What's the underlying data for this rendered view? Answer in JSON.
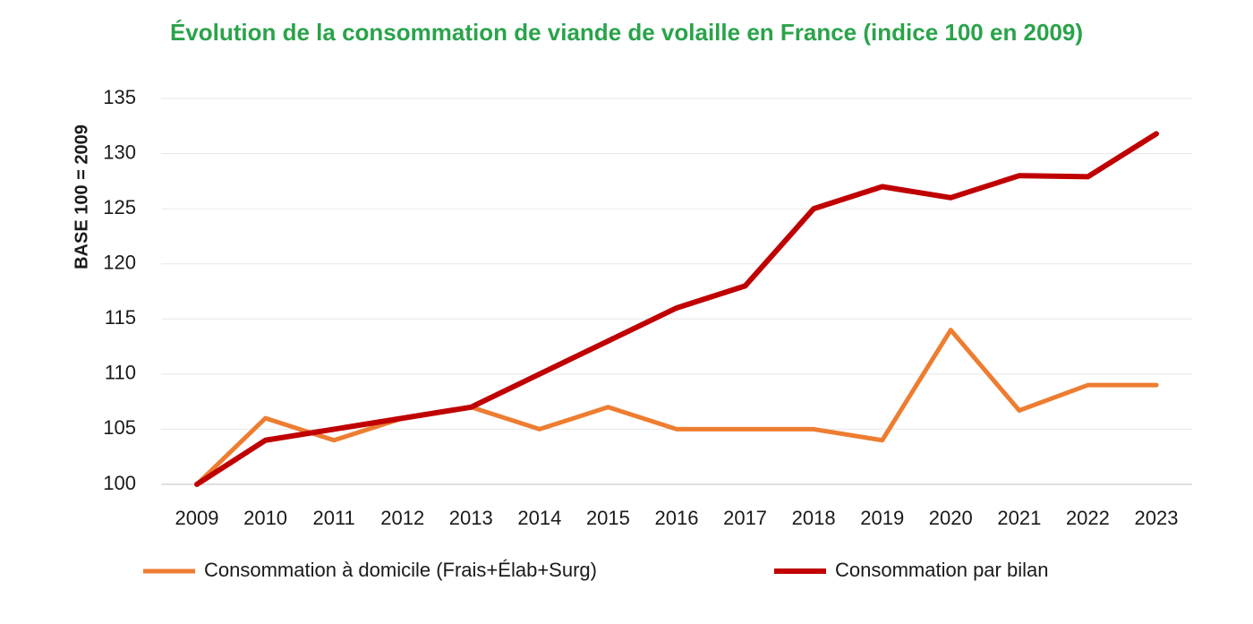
{
  "chart_data": {
    "type": "line",
    "title": "Évolution de la consommation de viande de volaille en France (indice 100 en 2009)",
    "y_label": "BASE 100 = 2009",
    "categories": [
      "2009",
      "2010",
      "2011",
      "2012",
      "2013",
      "2014",
      "2015",
      "2016",
      "2017",
      "2018",
      "2019",
      "2020",
      "2021",
      "2022",
      "2023"
    ],
    "series": [
      {
        "name": "Consommation à domicile (Frais+Élab+Surg)",
        "color": "#ed7d31",
        "values": [
          100,
          106,
          104,
          106,
          107,
          105,
          107,
          105,
          105,
          105,
          104,
          114,
          106.7,
          109,
          109
        ]
      },
      {
        "name": "Consommation par bilan",
        "color": "#c00000",
        "values": [
          100,
          104,
          105,
          106,
          107,
          110,
          113,
          116,
          118,
          125,
          127,
          126,
          128,
          127.9,
          131.8
        ]
      }
    ],
    "ylim": [
      100,
      135
    ],
    "yticks": [
      100,
      105,
      110,
      115,
      120,
      125,
      130,
      135
    ],
    "grid": true
  }
}
